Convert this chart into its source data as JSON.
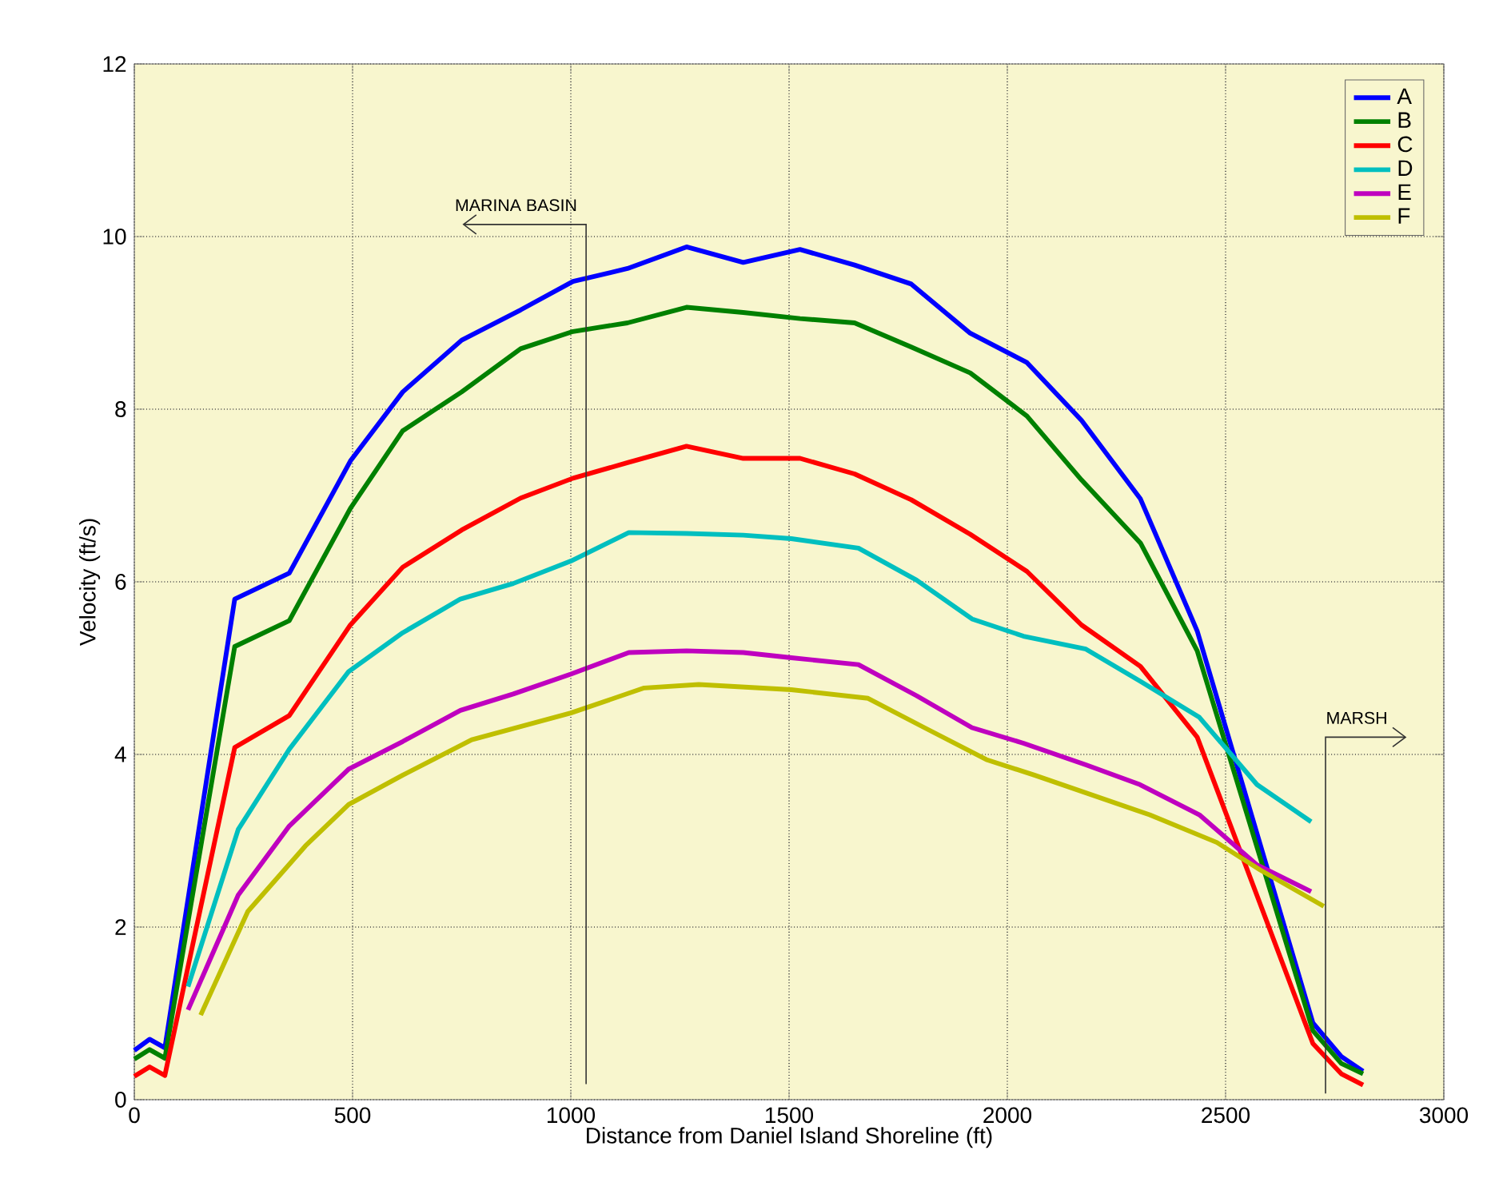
{
  "chart_data": {
    "type": "line",
    "xlabel": "Distance from Daniel Island Shoreline (ft)",
    "ylabel": "Velocity (ft/s)",
    "xlim": [
      0,
      3000
    ],
    "xticks": [
      0,
      500,
      1000,
      1500,
      2000,
      2500,
      3000
    ],
    "ylim": [
      0,
      12
    ],
    "yticks": [
      0,
      2,
      4,
      6,
      8,
      10,
      12
    ],
    "grid": true,
    "legend": "top right",
    "line_style": "solid",
    "marker": "none",
    "series": [
      {
        "name": "A",
        "color": "#0000ff",
        "x": [
          0,
          35,
          70,
          230,
          355,
          495,
          615,
          750,
          885,
          1005,
          1130,
          1265,
          1395,
          1525,
          1650,
          1780,
          1915,
          2045,
          2170,
          2305,
          2435,
          2700,
          2765,
          2815
        ],
        "values": [
          0.57,
          0.7,
          0.6,
          5.8,
          6.1,
          7.4,
          8.2,
          8.8,
          9.15,
          9.48,
          9.63,
          9.88,
          9.7,
          9.85,
          9.67,
          9.45,
          8.88,
          8.54,
          7.87,
          6.96,
          5.43,
          0.89,
          0.5,
          0.33
        ]
      },
      {
        "name": "B",
        "color": "#008000",
        "x": [
          0,
          35,
          70,
          230,
          355,
          495,
          615,
          750,
          885,
          1005,
          1130,
          1265,
          1395,
          1525,
          1650,
          1780,
          1915,
          2045,
          2170,
          2305,
          2435,
          2700,
          2765,
          2815
        ],
        "values": [
          0.47,
          0.58,
          0.48,
          5.25,
          5.55,
          6.85,
          7.75,
          8.2,
          8.7,
          8.9,
          9.0,
          9.18,
          9.12,
          9.05,
          9.0,
          8.72,
          8.42,
          7.92,
          7.18,
          6.45,
          5.2,
          0.8,
          0.42,
          0.3
        ]
      },
      {
        "name": "C",
        "color": "#ff0000",
        "x": [
          0,
          35,
          70,
          230,
          355,
          495,
          615,
          750,
          885,
          1005,
          1130,
          1265,
          1395,
          1525,
          1650,
          1780,
          1915,
          2045,
          2170,
          2305,
          2435,
          2700,
          2765,
          2815
        ],
        "values": [
          0.27,
          0.38,
          0.28,
          4.08,
          4.45,
          5.5,
          6.17,
          6.6,
          6.97,
          7.2,
          7.38,
          7.57,
          7.43,
          7.43,
          7.25,
          6.95,
          6.55,
          6.12,
          5.5,
          5.02,
          4.2,
          0.65,
          0.3,
          0.17
        ]
      },
      {
        "name": "D",
        "color": "#00bfbf",
        "x": [
          123,
          238,
          355,
          491,
          615,
          747,
          868,
          1000,
          1133,
          1265,
          1395,
          1505,
          1659,
          1792,
          1919,
          2037,
          2180,
          2304,
          2440,
          2572,
          2696
        ],
        "values": [
          1.31,
          3.13,
          4.06,
          4.96,
          5.41,
          5.8,
          5.98,
          6.24,
          6.57,
          6.56,
          6.54,
          6.5,
          6.39,
          6.02,
          5.57,
          5.37,
          5.22,
          4.85,
          4.43,
          3.65,
          3.22
        ]
      },
      {
        "name": "E",
        "color": "#bf00bf",
        "x": [
          123,
          238,
          355,
          491,
          615,
          747,
          868,
          1000,
          1133,
          1265,
          1395,
          1505,
          1659,
          1792,
          1919,
          2037,
          2180,
          2304,
          2440,
          2572,
          2696
        ],
        "values": [
          1.04,
          2.37,
          3.17,
          3.83,
          4.15,
          4.51,
          4.7,
          4.93,
          5.18,
          5.2,
          5.18,
          5.12,
          5.04,
          4.68,
          4.31,
          4.13,
          3.88,
          3.65,
          3.3,
          2.72,
          2.41
        ]
      },
      {
        "name": "F",
        "color": "#bfbf00",
        "x": [
          152,
          260,
          392,
          491,
          615,
          773,
          1000,
          1168,
          1293,
          1505,
          1681,
          1810,
          1952,
          2062,
          2326,
          2480,
          2580,
          2725
        ],
        "values": [
          0.98,
          2.18,
          2.94,
          3.42,
          3.76,
          4.17,
          4.48,
          4.77,
          4.81,
          4.75,
          4.65,
          4.31,
          3.94,
          3.76,
          3.3,
          2.98,
          2.66,
          2.24
        ]
      }
    ],
    "ref_lines": [
      {
        "axis": "x",
        "value": 1035,
        "label": "MARINA BASIN",
        "color": "#333333"
      },
      {
        "axis": "x",
        "value": 2729,
        "label": "MARSH",
        "color": "#333333"
      }
    ]
  }
}
